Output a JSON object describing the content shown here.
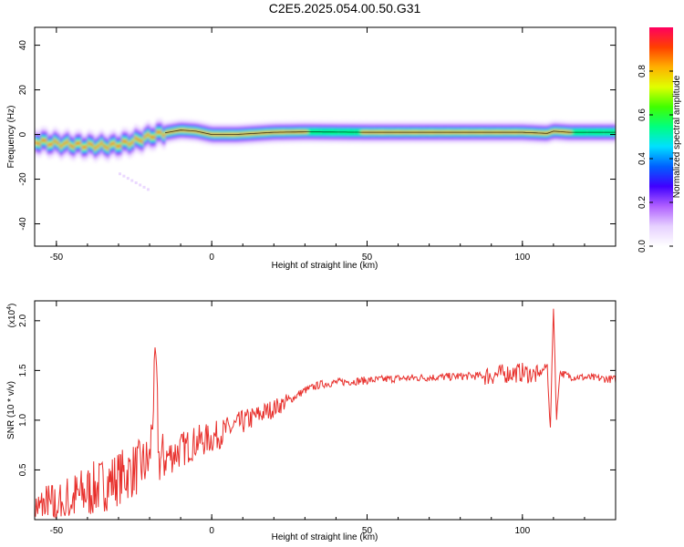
{
  "title": "C2E5.2025.054.00.50.G31",
  "chart_data": [
    {
      "type": "heatmap",
      "xlabel": "Height of straight line (km)",
      "ylabel": "Frequency (Hz)",
      "xlim": [
        -57,
        130
      ],
      "ylim": [
        -50,
        48
      ],
      "xticks": [
        "-50",
        "0",
        "50",
        "100"
      ],
      "yticks": [
        "-40",
        "-20",
        "0",
        "20",
        "40"
      ],
      "colorbar": {
        "label": "Normalized spectral amplitude",
        "range": [
          0,
          1
        ],
        "ticks": [
          "0.0",
          "0.2",
          "0.4",
          "0.6",
          "0.8"
        ],
        "colors": [
          "#ffffff",
          "#e6d0ff",
          "#b060ff",
          "#4000ff",
          "#0060ff",
          "#00e0ff",
          "#00ff80",
          "#40ff00",
          "#e0ff00",
          "#ffb000",
          "#ff4000",
          "#ff0060"
        ]
      },
      "ridge": {
        "x": [
          -57,
          -50,
          -40,
          -32,
          -25,
          -18,
          -10,
          -5,
          0,
          8,
          20,
          30,
          50,
          70,
          100,
          108,
          110,
          115,
          130
        ],
        "frequency": [
          -3,
          -4,
          -5,
          -5,
          -3,
          0,
          2,
          1.5,
          0,
          0,
          1,
          1.2,
          1,
          1,
          1,
          0.5,
          1.5,
          1,
          1
        ]
      }
    },
    {
      "type": "line",
      "xlabel": "Height of straight line (km)",
      "ylabel": "SNR (10 * v/v)",
      "multiplier": "(x10",
      "multiplier_exp": "4",
      "xlim": [
        -57,
        130
      ],
      "ylim": [
        0,
        2.2
      ],
      "xticks": [
        "-50",
        "0",
        "50",
        "100"
      ],
      "yticks": [
        "0.5",
        "1.0",
        "1.5",
        "2.0"
      ],
      "series": [
        {
          "color": "#e8302c",
          "x": [
            -57,
            -50,
            -45,
            -40,
            -35,
            -30,
            -25,
            -20,
            -18,
            -17,
            -15,
            -10,
            -5,
            0,
            5,
            10,
            15,
            20,
            25,
            30,
            35,
            40,
            50,
            60,
            70,
            80,
            90,
            95,
            100,
            105,
            108,
            109,
            110,
            111,
            112,
            115,
            120,
            125,
            130
          ],
          "y": [
            0.08,
            0.12,
            0.2,
            0.28,
            0.35,
            0.42,
            0.5,
            0.58,
            1.58,
            0.6,
            0.62,
            0.7,
            0.78,
            0.82,
            0.9,
            0.98,
            1.05,
            1.12,
            1.2,
            1.3,
            1.36,
            1.38,
            1.4,
            1.42,
            1.43,
            1.44,
            1.45,
            1.47,
            1.48,
            1.45,
            1.55,
            0.9,
            2.15,
            1.0,
            1.48,
            1.44,
            1.43,
            1.42,
            1.41
          ]
        }
      ]
    }
  ]
}
